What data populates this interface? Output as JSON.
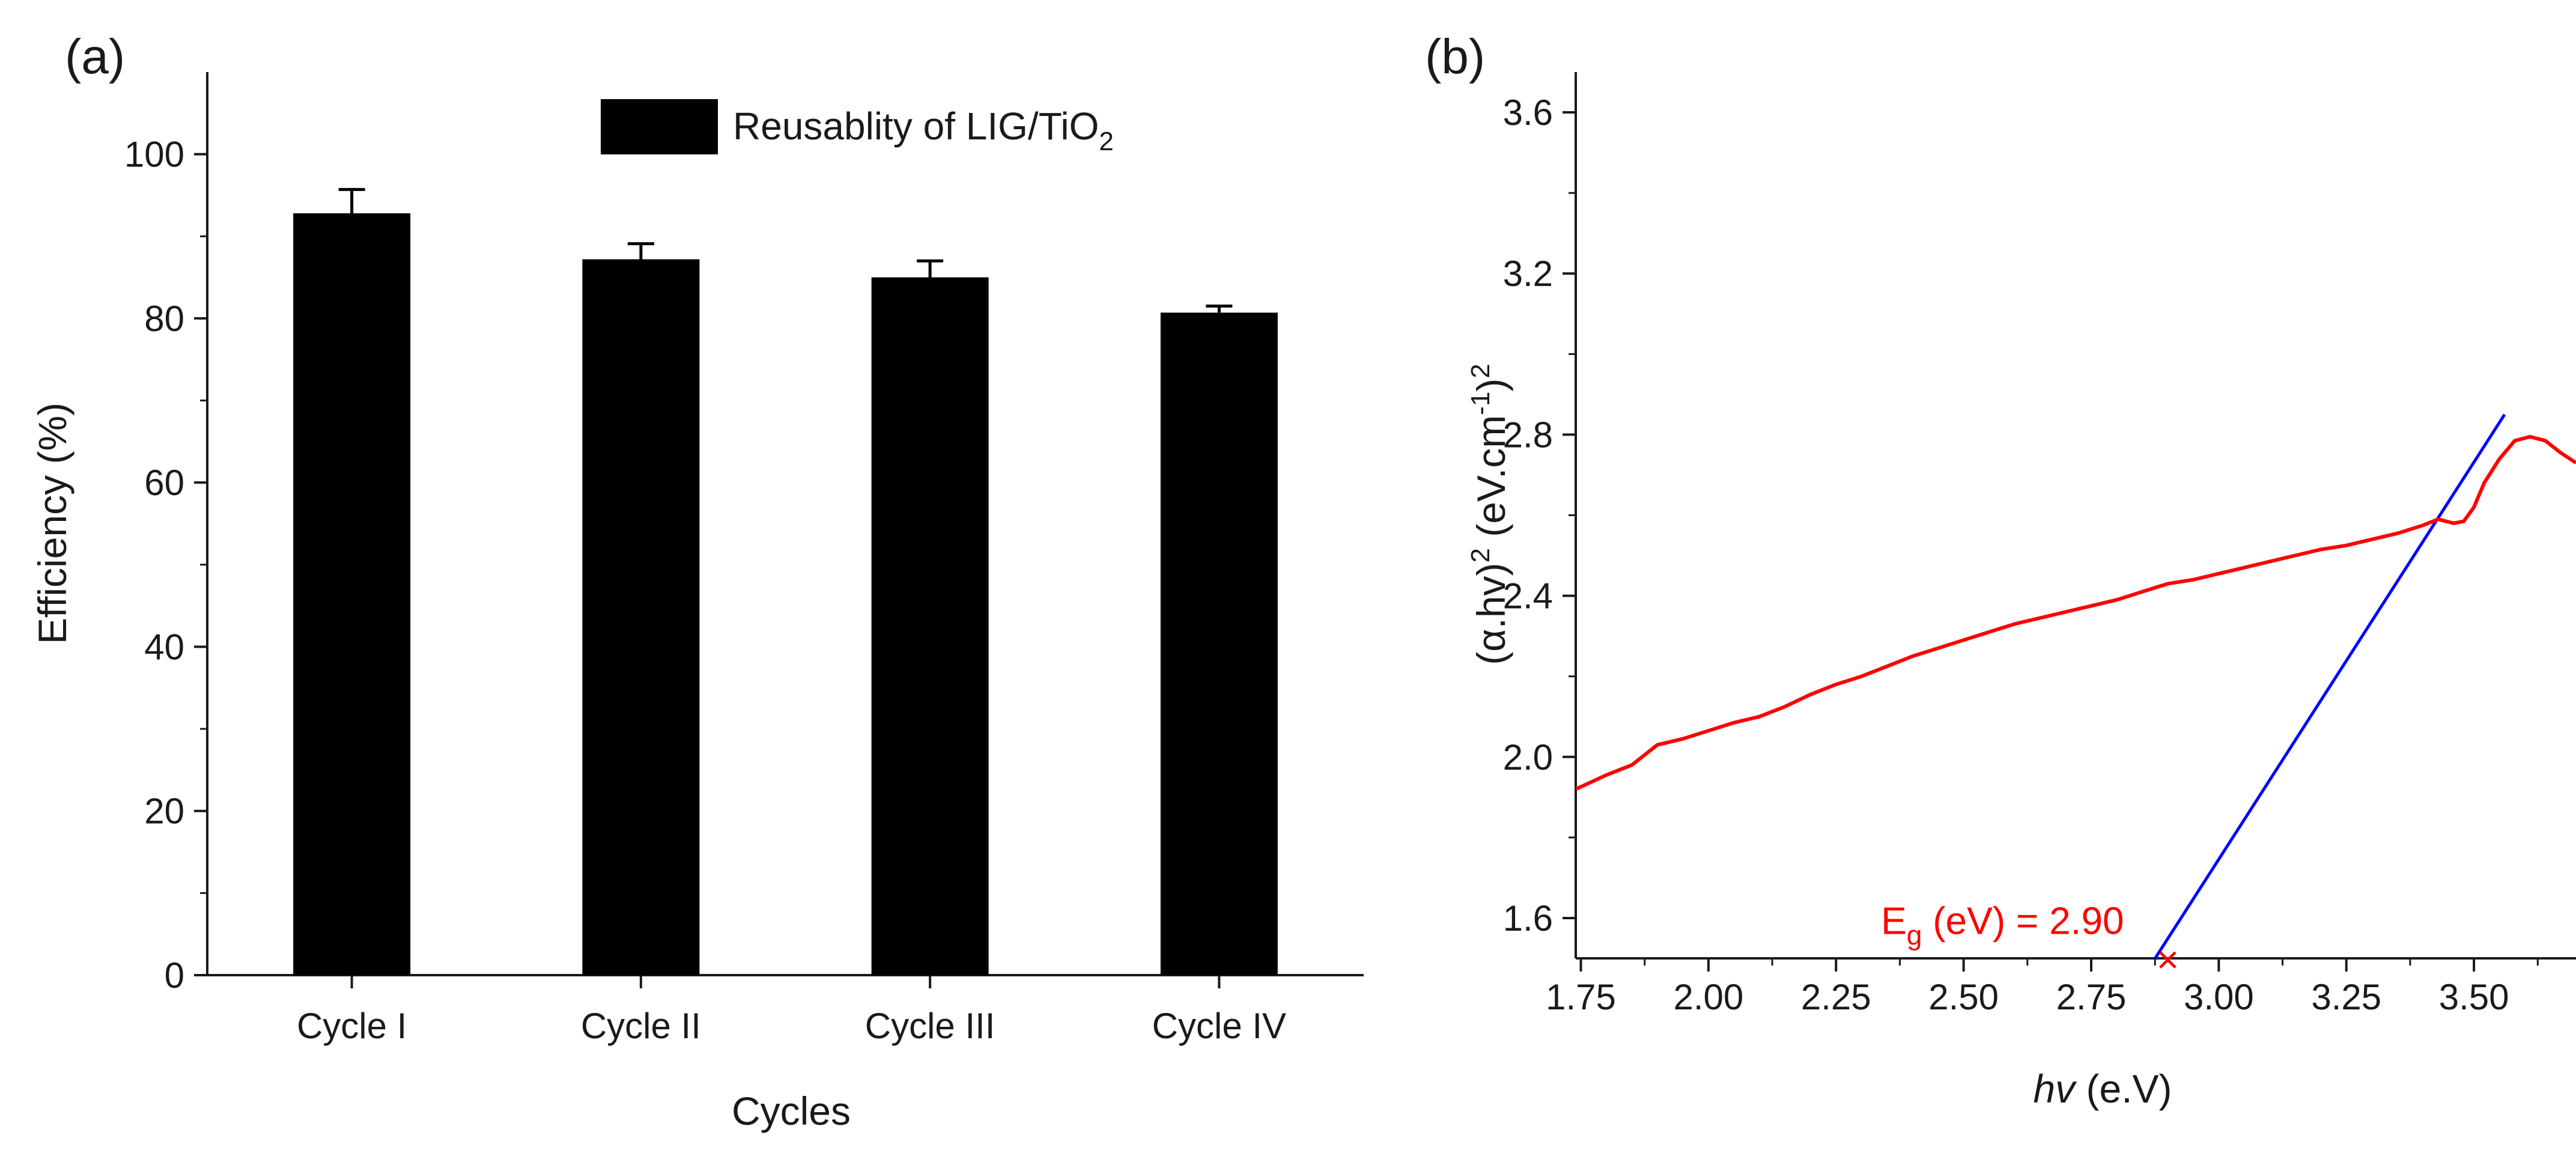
{
  "chart_data": [
    {
      "panel_label": "(a)",
      "type": "bar",
      "title": "",
      "xlabel": "Cycles",
      "ylabel": "Efficiency (%)",
      "categories": [
        "Cycle I",
        "Cycle II",
        "Cycle III",
        "Cycle IV"
      ],
      "series": [
        {
          "name": "Reusablity of LIG/TiO",
          "name_subscript": "2",
          "values": [
            92.8,
            87.2,
            85.0,
            80.7
          ],
          "errors": [
            2.9,
            1.9,
            2.0,
            0.8
          ],
          "color": "#000000"
        }
      ],
      "ylim": [
        0,
        110
      ],
      "yticks": [
        0,
        20,
        40,
        60,
        80,
        100
      ],
      "ytick_labels": [
        "0",
        "20",
        "40",
        "60",
        "80",
        "100"
      ],
      "grid": false,
      "legend_position": "top-right"
    },
    {
      "panel_label": "(b)",
      "type": "line",
      "title": "",
      "xlabel_main": "hv",
      "xlabel_unit": " (e.V)",
      "ylabel_parts": {
        "a": "(α.hv)",
        "b": "2",
        "c": " (eV.cm",
        "d": "-1",
        "e": ")",
        "f": "2"
      },
      "xlim": [
        1.74,
        3.7
      ],
      "ylim": [
        1.5,
        3.7
      ],
      "xticks": [
        1.75,
        2.0,
        2.25,
        2.5,
        2.75,
        3.0,
        3.25,
        3.5
      ],
      "xtick_labels": [
        "1.75",
        "2.00",
        "2.25",
        "2.50",
        "2.75",
        "3.00",
        "3.25",
        "3.50"
      ],
      "yticks": [
        1.6,
        2.0,
        2.4,
        2.8,
        3.2,
        3.6
      ],
      "ytick_labels": [
        "1.6",
        "2.0",
        "2.4",
        "2.8",
        "3.2",
        "3.6"
      ],
      "grid": false,
      "series": [
        {
          "name": "spectrum",
          "color": "#ff0000",
          "x": [
            1.74,
            1.8,
            1.85,
            1.9,
            1.95,
            2.0,
            2.05,
            2.1,
            2.15,
            2.2,
            2.25,
            2.3,
            2.35,
            2.4,
            2.45,
            2.5,
            2.55,
            2.6,
            2.65,
            2.7,
            2.75,
            2.8,
            2.85,
            2.9,
            2.95,
            3.0,
            3.05,
            3.1,
            3.15,
            3.2,
            3.25,
            3.3,
            3.35,
            3.4,
            3.43,
            3.46,
            3.48,
            3.5,
            3.52,
            3.55,
            3.58,
            3.61,
            3.64,
            3.67,
            3.7
          ],
          "y": [
            1.92,
            1.955,
            1.98,
            2.03,
            2.045,
            2.065,
            2.085,
            2.1,
            2.125,
            2.155,
            2.18,
            2.2,
            2.225,
            2.25,
            2.27,
            2.29,
            2.31,
            2.33,
            2.345,
            2.36,
            2.375,
            2.39,
            2.41,
            2.43,
            2.44,
            2.455,
            2.47,
            2.485,
            2.5,
            2.515,
            2.525,
            2.54,
            2.555,
            2.575,
            2.59,
            2.58,
            2.585,
            2.62,
            2.68,
            2.74,
            2.785,
            2.795,
            2.785,
            2.755,
            2.73
          ]
        },
        {
          "name": "tangent",
          "color": "#0000ff",
          "x": [
            2.85,
            3.56
          ],
          "y": [
            1.45,
            2.85
          ]
        }
      ],
      "marker": {
        "x": 2.9,
        "y": 1.5,
        "symbol": "×",
        "color": "#ff0000"
      },
      "annotation": {
        "part1": "E",
        "sub": "g",
        "part2": " (eV) = 2.90",
        "x": 2.9,
        "y": 1.62,
        "color": "#ff0000"
      }
    }
  ]
}
